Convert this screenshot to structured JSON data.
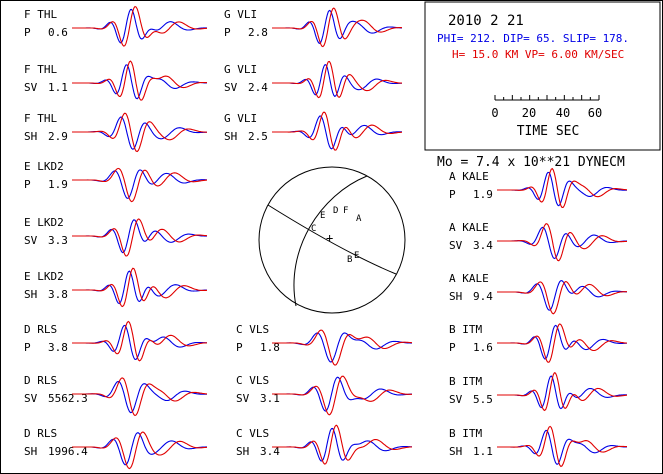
{
  "header": {
    "date": "2010  2 21",
    "mechanism": "PHI= 212. DIP= 65. SLIP= 178.",
    "depth_velocity": "H= 15.0 KM  VP= 6.00 KM/SEC",
    "scale_ticks": [
      "0",
      "20",
      "40",
      "60"
    ],
    "scale_label": "TIME  SEC",
    "moment": "Mo =  7.4 x 10**21 DYNECM"
  },
  "colors": {
    "observed": "#e00000",
    "synthetic": "#0000e6",
    "mechanism_text": "#0000e6",
    "depth_text": "#e00000",
    "frame": "#000000"
  },
  "beachball": {
    "stations": [
      "E",
      "D",
      "F",
      "A",
      "C",
      "B",
      "E"
    ]
  },
  "traces": [
    {
      "station": "F THL",
      "component": "P",
      "amp": "0.6"
    },
    {
      "station": "F THL",
      "component": "SV",
      "amp": "1.1"
    },
    {
      "station": "F THL",
      "component": "SH",
      "amp": "2.9"
    },
    {
      "station": "E LKD2",
      "component": "P",
      "amp": "1.9"
    },
    {
      "station": "E LKD2",
      "component": "SV",
      "amp": "3.3"
    },
    {
      "station": "E LKD2",
      "component": "SH",
      "amp": "3.8"
    },
    {
      "station": "D RLS",
      "component": "P",
      "amp": "3.8"
    },
    {
      "station": "D RLS",
      "component": "SV",
      "amp": "5562.3"
    },
    {
      "station": "D RLS",
      "component": "SH",
      "amp": "1996.4"
    },
    {
      "station": "G VLI",
      "component": "P",
      "amp": "2.8"
    },
    {
      "station": "G VLI",
      "component": "SV",
      "amp": "2.4"
    },
    {
      "station": "G VLI",
      "component": "SH",
      "amp": "2.5"
    },
    {
      "station": "C VLS",
      "component": "P",
      "amp": "1.8"
    },
    {
      "station": "C VLS",
      "component": "SV",
      "amp": "3.1"
    },
    {
      "station": "C VLS",
      "component": "SH",
      "amp": "3.4"
    },
    {
      "station": "A KALE",
      "component": "P",
      "amp": "1.9"
    },
    {
      "station": "A KALE",
      "component": "SV",
      "amp": "3.4"
    },
    {
      "station": "A KALE",
      "component": "SH",
      "amp": "9.4"
    },
    {
      "station": "B ITM",
      "component": "P",
      "amp": "1.6"
    },
    {
      "station": "B ITM",
      "component": "SV",
      "amp": "5.5"
    },
    {
      "station": "B ITM",
      "component": "SH",
      "amp": "1.1"
    }
  ]
}
